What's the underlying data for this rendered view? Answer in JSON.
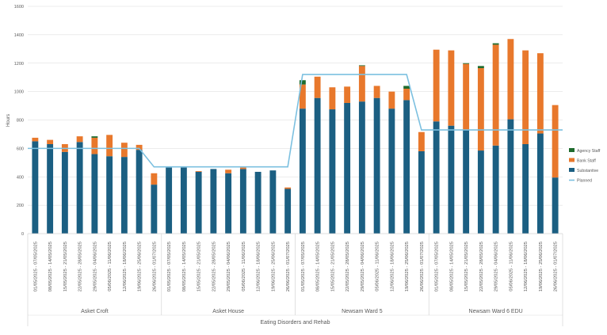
{
  "chart_data": {
    "type": "bar",
    "stacked": true,
    "ylabel": "Hours",
    "ylim": [
      0,
      1600
    ],
    "yticks": [
      0,
      200,
      400,
      600,
      800,
      1000,
      1200,
      1400,
      1600
    ],
    "grid": true,
    "legend_position": "right",
    "category_group": "Eating Disorders and Rehab",
    "colors": {
      "substantive": "#1b5f82",
      "bank": "#e8782c",
      "agency": "#1e6b2d",
      "planned": "#7cc0e0",
      "grid": "#d9d9d9",
      "axis_text": "#595959"
    },
    "legend": [
      {
        "key": "agency",
        "label": "Agency Staff"
      },
      {
        "key": "bank",
        "label": "Bank Staff"
      },
      {
        "key": "substantive",
        "label": "Substantive"
      },
      {
        "key": "planned",
        "label": "Planned"
      }
    ],
    "weeks": [
      "01/05/2025 - 07/05/2025",
      "08/05/2025 - 14/05/2025",
      "15/05/2025 - 21/05/2025",
      "22/05/2025 - 28/05/2025",
      "29/05/2025 - 04/06/2025",
      "05/06/2025 - 11/06/2025",
      "12/06/2025 - 18/06/2025",
      "19/06/2025 - 25/06/2025",
      "26/06/2025 - 01/07/2025"
    ],
    "wards": [
      {
        "name": "Asket Croft",
        "substantive": [
          650,
          630,
          575,
          645,
          560,
          545,
          540,
          590,
          345
        ],
        "bank": [
          25,
          30,
          55,
          40,
          115,
          150,
          100,
          35,
          80
        ],
        "agency": [
          0,
          0,
          0,
          0,
          10,
          0,
          0,
          0,
          0
        ],
        "planned": [
          600,
          600,
          600,
          600,
          600,
          600,
          600,
          600,
          470
        ]
      },
      {
        "name": "Asket House",
        "substantive": [
          465,
          465,
          435,
          455,
          425,
          455,
          435,
          445,
          315
        ],
        "bank": [
          0,
          0,
          5,
          0,
          25,
          10,
          0,
          0,
          10
        ],
        "agency": [
          0,
          0,
          0,
          0,
          0,
          0,
          0,
          0,
          0
        ],
        "planned": [
          470,
          470,
          470,
          470,
          470,
          470,
          470,
          470,
          470
        ]
      },
      {
        "name": "Newsam Ward 5",
        "substantive": [
          880,
          955,
          875,
          920,
          930,
          955,
          880,
          940,
          580
        ],
        "bank": [
          170,
          150,
          155,
          115,
          250,
          85,
          120,
          80,
          135
        ],
        "agency": [
          30,
          0,
          0,
          0,
          5,
          0,
          0,
          20,
          0
        ],
        "planned": [
          1120,
          1120,
          1120,
          1120,
          1120,
          1120,
          1120,
          1120,
          730
        ]
      },
      {
        "name": "Newsam Ward 6 EDU",
        "substantive": [
          790,
          760,
          730,
          585,
          620,
          805,
          630,
          705,
          395
        ],
        "bank": [
          505,
          530,
          465,
          580,
          710,
          565,
          660,
          565,
          510
        ],
        "agency": [
          0,
          0,
          5,
          15,
          10,
          0,
          0,
          0,
          0
        ],
        "planned": [
          730,
          730,
          730,
          730,
          730,
          730,
          730,
          730,
          730
        ]
      }
    ]
  }
}
